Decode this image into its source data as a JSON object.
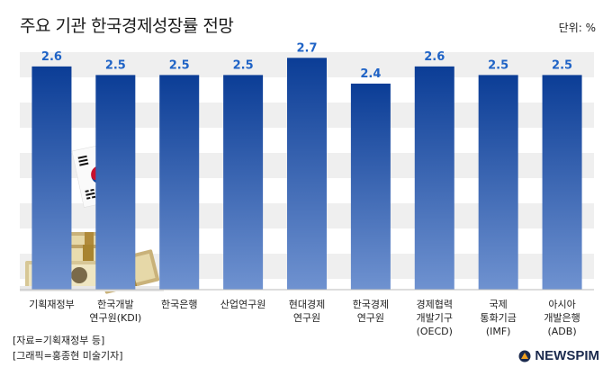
{
  "header": {
    "title": "주요 기관 한국경제성장률 전망",
    "unit": "단위: %"
  },
  "chart_data": {
    "type": "bar",
    "title": "주요 기관 한국경제성장률 전망",
    "xlabel": "",
    "ylabel": "",
    "categories": [
      [
        "기획재정부"
      ],
      [
        "한국개발",
        "연구원(KDI)"
      ],
      [
        "한국은행"
      ],
      [
        "산업연구원"
      ],
      [
        "현대경제",
        "연구원"
      ],
      [
        "한국경제",
        "연구원"
      ],
      [
        "경제협력",
        "개발기구",
        "(OECD)"
      ],
      [
        "국제",
        "통화기금",
        "(IMF)"
      ],
      [
        "아시아",
        "개발은행",
        "(ADB)"
      ]
    ],
    "values": [
      2.6,
      2.5,
      2.5,
      2.5,
      2.7,
      2.4,
      2.6,
      2.5,
      2.5
    ],
    "value_labels": [
      "2.6",
      "2.5",
      "2.5",
      "2.5",
      "2.7",
      "2.4",
      "2.6",
      "2.5",
      "2.5"
    ],
    "ylim": [
      0,
      2.85
    ],
    "grid": "banded",
    "colors": {
      "bar_top": "#0b3d96",
      "bar_bottom": "#6f92d0",
      "value_label": "#1f63c6",
      "band": "#efefef"
    }
  },
  "footer": {
    "source": "[자료=기획재정부 등]",
    "graphic": "[그래픽=홍종현 미술기자]",
    "logo": "NEWSPIM"
  }
}
